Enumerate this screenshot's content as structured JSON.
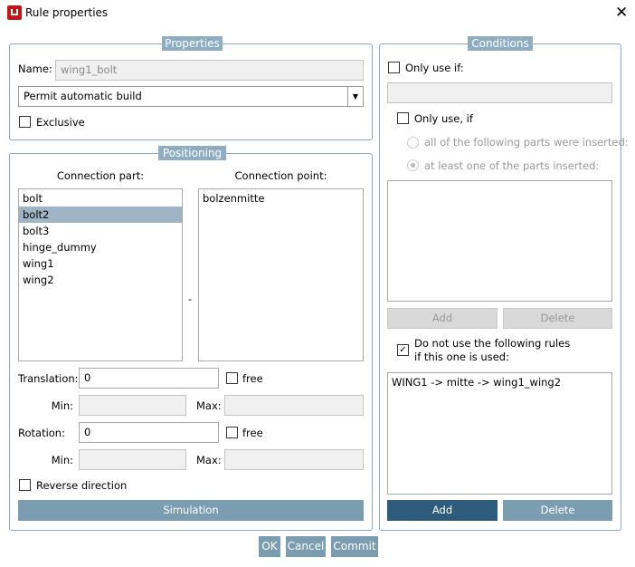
{
  "window": {
    "title": "Rule properties",
    "icon": "app-icon",
    "close": "close-icon"
  },
  "properties": {
    "legend": "Properties",
    "name_label": "Name:",
    "name_value": "wing1_bolt",
    "build_mode": "Permit automatic build",
    "exclusive_label": "Exclusive",
    "exclusive_checked": false
  },
  "positioning": {
    "legend": "Positioning",
    "part_header": "Connection part:",
    "point_header": "Connection point:",
    "parts": [
      {
        "label": "bolt"
      },
      {
        "label": "bolt2"
      },
      {
        "label": "bolt3"
      },
      {
        "label": "hinge_dummy"
      },
      {
        "label": "wing1"
      },
      {
        "label": "wing2"
      }
    ],
    "selected_part": "bolt2",
    "separator": "-",
    "points": [
      {
        "label": "bolzenmitte"
      }
    ],
    "translation_label": "Translation:",
    "translation_value": "0",
    "rotation_label": "Rotation:",
    "rotation_value": "0",
    "free_label": "free",
    "min_label": "Min:",
    "max_label": "Max:",
    "reverse_label": "Reverse direction",
    "simulation": "Simulation"
  },
  "conditions": {
    "legend": "Conditions",
    "only_use_if": "Only use if:",
    "only_use_if2": "Only use, if",
    "radio_all": "all of the following parts were inserted:",
    "radio_one": "at least one of the parts inserted:",
    "add": "Add",
    "delete": "Delete",
    "exclude_line1": "Do not use the following rules",
    "exclude_line2": "if this one is used:",
    "exclude_checked": true,
    "excluded_rules": [
      "WING1 -> mitte -> wing1_wing2"
    ]
  },
  "footer": {
    "ok": "OK",
    "cancel": "Cancel",
    "commit": "Commit"
  },
  "colors": {
    "accent": "#7b9db2",
    "primary": "#2e5c7d",
    "selection": "#9fb5c6"
  }
}
